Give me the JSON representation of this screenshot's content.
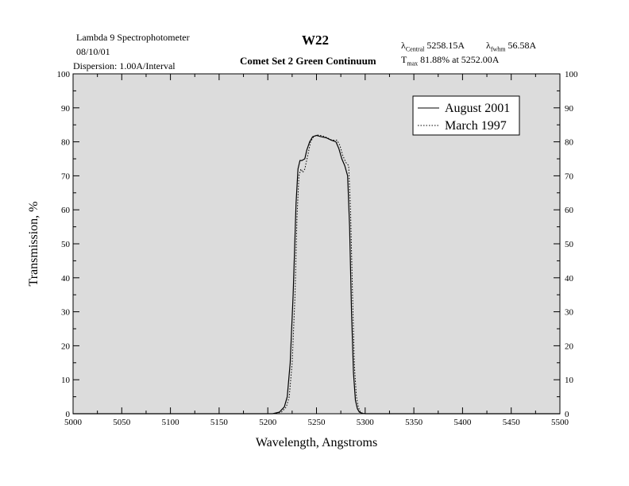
{
  "header": {
    "instrument": "Lambda 9 Spectrophotometer",
    "date": "08/10/01",
    "dispersion": "Dispersion:  1.00A/Interval",
    "title": "W22",
    "subtitle": "Comet Set 2 Green Continuum",
    "central_symbol": "λ",
    "central_sub": "Central",
    "central_value": "5258.15A",
    "fwhm_symbol": "λ",
    "fwhm_sub": "fwhm",
    "fwhm_value": "56.58A",
    "tmax_symbol": "T",
    "tmax_sub": "max",
    "tmax_value": "81.88% at  5252.00A"
  },
  "chart_data": {
    "type": "line",
    "xlabel": "Wavelength, Angstroms",
    "ylabel": "Transmission, %",
    "xlim": [
      5000,
      5500
    ],
    "ylim": [
      0,
      100
    ],
    "x_ticks": [
      "5000",
      "5050",
      "5100",
      "5150",
      "5200",
      "5250",
      "5300",
      "5350",
      "5400",
      "5450",
      "5500"
    ],
    "y_ticks": [
      "0",
      "10",
      "20",
      "30",
      "40",
      "50",
      "60",
      "70",
      "80",
      "90",
      "100"
    ],
    "grid": false,
    "background_color": "#dcdcdc",
    "legend_position": "top-right",
    "series": [
      {
        "name": "August 2001",
        "style": "solid",
        "x": [
          5000,
          5205,
          5212,
          5217,
          5220,
          5223,
          5226,
          5229,
          5231,
          5233,
          5235,
          5238,
          5240,
          5243,
          5246,
          5250,
          5255,
          5260,
          5265,
          5270,
          5273,
          5276,
          5279,
          5282,
          5284,
          5286,
          5288,
          5290,
          5292,
          5294,
          5297,
          5300,
          5500
        ],
        "y": [
          0,
          0,
          0.5,
          2,
          5,
          15,
          35,
          62,
          72,
          74.5,
          74.5,
          75,
          77.5,
          80,
          81.5,
          81.9,
          81.5,
          81.2,
          80.5,
          80,
          78,
          75,
          73,
          70,
          55,
          30,
          12,
          4,
          1.5,
          0.5,
          0.1,
          0,
          0
        ]
      },
      {
        "name": "March 1997",
        "style": "dotted",
        "x": [
          5000,
          5207,
          5214,
          5219,
          5222,
          5225,
          5228,
          5230,
          5232,
          5234,
          5236,
          5238,
          5241,
          5244,
          5247,
          5251,
          5256,
          5261,
          5266,
          5271,
          5274,
          5277,
          5280,
          5283,
          5285,
          5287,
          5289,
          5291,
          5293,
          5295,
          5298,
          5302,
          5500
        ],
        "y": [
          0,
          0,
          0.5,
          2,
          5,
          15,
          35,
          58,
          70,
          72,
          71,
          72,
          76,
          80,
          81.5,
          82,
          81.8,
          81.2,
          80.5,
          80.5,
          79,
          76,
          74,
          73,
          60,
          35,
          14,
          5,
          2,
          0.5,
          0.1,
          0,
          0
        ]
      }
    ]
  }
}
